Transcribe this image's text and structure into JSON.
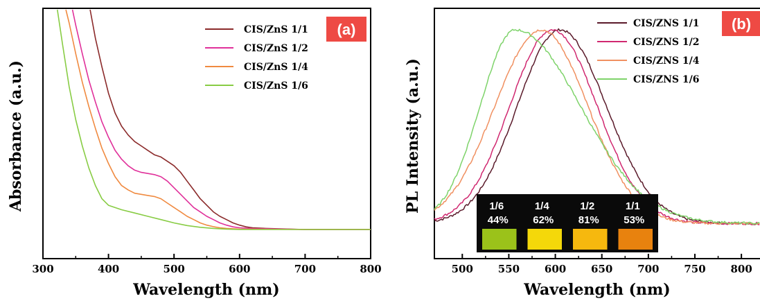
{
  "panels": [
    {
      "id": "a",
      "chart_data": {
        "type": "line",
        "panel_label": "(a)",
        "xlabel": "Wavelength (nm)",
        "ylabel": "Absorbance (a.u.)",
        "xlim": [
          300,
          800
        ],
        "ylim": [
          0,
          1
        ],
        "x_ticks": [
          300,
          400,
          500,
          600,
          700,
          800
        ],
        "y_ticks_labeled": false,
        "grid": false,
        "legend_position": "top-right",
        "series": [
          {
            "name": "CIS/ZnS 1/1",
            "color": "#8B2A2A",
            "x": [
              372,
              380,
              390,
              400,
              410,
              420,
              430,
              440,
              450,
              460,
              470,
              480,
              490,
              500,
              510,
              520,
              530,
              540,
              550,
              560,
              570,
              580,
              590,
              600,
              610,
              620,
              640,
              700,
              800
            ],
            "y": [
              1.0,
              0.87,
              0.74,
              0.62,
              0.53,
              0.47,
              0.43,
              0.4,
              0.38,
              0.36,
              0.34,
              0.33,
              0.31,
              0.29,
              0.26,
              0.22,
              0.18,
              0.14,
              0.11,
              0.08,
              0.06,
              0.045,
              0.03,
              0.02,
              0.012,
              0.008,
              0.005,
              0.0,
              0.0
            ]
          },
          {
            "name": "CIS/ZnS 1/2",
            "color": "#E0309A",
            "x": [
              345,
              350,
              360,
              370,
              380,
              390,
              400,
              410,
              420,
              430,
              440,
              450,
              460,
              470,
              480,
              490,
              500,
              510,
              520,
              530,
              540,
              550,
              560,
              570,
              580,
              590,
              600,
              620,
              700,
              800
            ],
            "y": [
              1.0,
              0.93,
              0.8,
              0.68,
              0.58,
              0.49,
              0.42,
              0.36,
              0.32,
              0.29,
              0.27,
              0.26,
              0.255,
              0.25,
              0.24,
              0.22,
              0.19,
              0.16,
              0.13,
              0.1,
              0.08,
              0.06,
              0.045,
              0.03,
              0.02,
              0.012,
              0.008,
              0.004,
              0.0,
              0.0
            ]
          },
          {
            "name": "CIS/ZnS 1/4",
            "color": "#F08A40",
            "x": [
              335,
              340,
              350,
              360,
              370,
              380,
              390,
              400,
              410,
              420,
              430,
              440,
              450,
              460,
              470,
              480,
              490,
              500,
              510,
              520,
              530,
              540,
              550,
              560,
              570,
              580,
              600,
              700,
              800
            ],
            "y": [
              1.0,
              0.94,
              0.8,
              0.67,
              0.56,
              0.46,
              0.37,
              0.3,
              0.24,
              0.2,
              0.18,
              0.165,
              0.16,
              0.155,
              0.15,
              0.14,
              0.12,
              0.1,
              0.08,
              0.06,
              0.045,
              0.03,
              0.02,
              0.013,
              0.008,
              0.005,
              0.002,
              0.0,
              0.0
            ]
          },
          {
            "name": "CIS/ZnS 1/6",
            "color": "#88CC44",
            "x": [
              322,
              330,
              340,
              350,
              360,
              370,
              380,
              390,
              400,
              420,
              440,
              460,
              480,
              500,
              520,
              540,
              560,
              580,
              600,
              700,
              800
            ],
            "y": [
              1.0,
              0.84,
              0.65,
              0.5,
              0.38,
              0.28,
              0.2,
              0.14,
              0.11,
              0.09,
              0.075,
              0.06,
              0.045,
              0.03,
              0.018,
              0.01,
              0.005,
              0.002,
              0.0,
              0.0,
              0.0
            ]
          }
        ]
      }
    },
    {
      "id": "b",
      "chart_data": {
        "type": "line",
        "panel_label": "(b)",
        "xlabel": "Wavelength (nm)",
        "ylabel": "PL Intensity (a.u.)",
        "xlim": [
          470,
          820
        ],
        "ylim": [
          0,
          1
        ],
        "x_ticks": [
          500,
          550,
          600,
          650,
          700,
          750,
          800
        ],
        "y_ticks_labeled": false,
        "grid": false,
        "legend_position": "top-right",
        "series": [
          {
            "name": "CIS/ZNS 1/1",
            "color": "#5A1A2A",
            "peak": 605,
            "sigma_left": 46,
            "sigma_right": 50,
            "tail": 0.03
          },
          {
            "name": "CIS/ZNS 1/2",
            "color": "#D02870",
            "peak": 597,
            "sigma_left": 46,
            "sigma_right": 48,
            "tail": 0.03
          },
          {
            "name": "CIS/ZNS 1/4",
            "color": "#F09060",
            "peak": 585,
            "sigma_left": 50,
            "sigma_right": 50,
            "tail": 0.03
          },
          {
            "name": "CIS/ZNS 1/6",
            "color": "#7ED36A",
            "peak": 557,
            "sigma_left": 38,
            "sigma_right": 70,
            "tail": 0.03
          }
        ],
        "inset": {
          "vials": [
            {
              "ratio": "1/6",
              "qy": "44%",
              "fill": "#9BC21A"
            },
            {
              "ratio": "1/4",
              "qy": "62%",
              "fill": "#F4D80A"
            },
            {
              "ratio": "1/2",
              "qy": "81%",
              "fill": "#F6B80E"
            },
            {
              "ratio": "1/1",
              "qy": "53%",
              "fill": "#E8820E"
            }
          ]
        }
      }
    }
  ],
  "colors": {
    "panel_label_bg": "#EE4A44",
    "panel_label_text": "#ffffff"
  }
}
